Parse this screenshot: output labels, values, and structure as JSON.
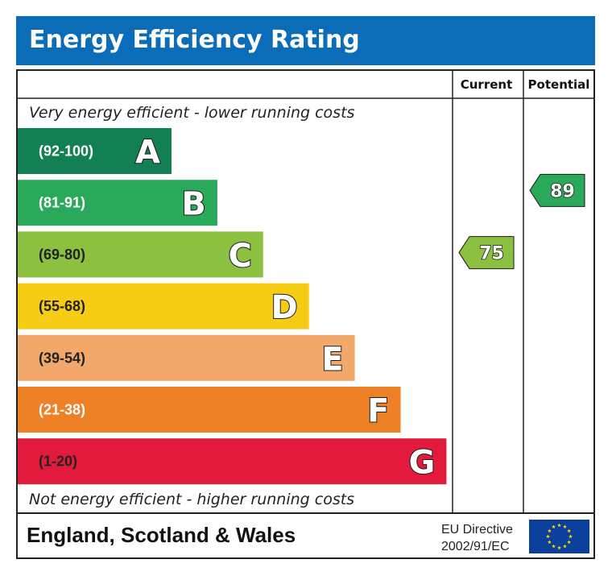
{
  "title": "Energy Efficiency Rating",
  "columns": {
    "current": "Current",
    "potential": "Potential"
  },
  "captions": {
    "top": "Very energy efficient - lower running costs",
    "bottom": "Not energy efficient - higher running costs"
  },
  "footer": {
    "region": "England, Scotland & Wales",
    "directive_line1": "EU Directive",
    "directive_line2": "2002/91/EC",
    "flag_icon": "eu-flag-icon"
  },
  "chart_data": {
    "type": "bar",
    "categories": [
      "A",
      "B",
      "C",
      "D",
      "E",
      "F",
      "G"
    ],
    "ranges": [
      "(92-100)",
      "(81-91)",
      "(69-80)",
      "(55-68)",
      "(39-54)",
      "(21-38)",
      "(1-20)"
    ],
    "range_min": [
      92,
      81,
      69,
      55,
      39,
      21,
      1
    ],
    "range_max": [
      100,
      91,
      80,
      68,
      54,
      38,
      20
    ],
    "colors": [
      "#128052",
      "#2aa95b",
      "#8bc041",
      "#f7cc15",
      "#f2a86a",
      "#ee8126",
      "#e21b3c"
    ],
    "range_text_colors": [
      "#ffffff",
      "#ffffff",
      "#222222",
      "#222222",
      "#222222",
      "#ffffff",
      "#222222"
    ],
    "current": {
      "value": 75,
      "band": "C",
      "color": "#8bc041"
    },
    "potential": {
      "value": 89,
      "band": "B",
      "color": "#2aa95b"
    }
  }
}
